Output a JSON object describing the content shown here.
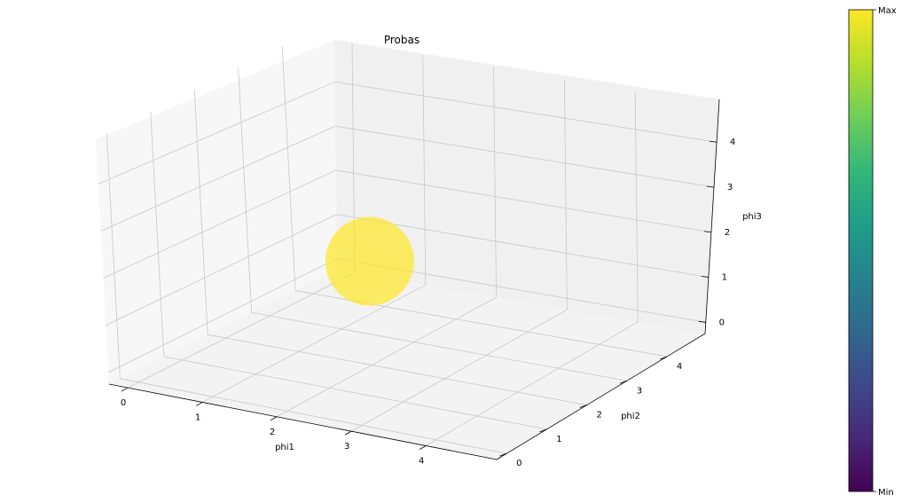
{
  "chart_data": {
    "type": "scatter",
    "projection": "3d",
    "title": "Probas",
    "xlabel": "phi1",
    "ylabel": "phi2",
    "zlabel": "phi3",
    "x_ticks": [
      0,
      1,
      2,
      3,
      4
    ],
    "y_ticks": [
      0,
      1,
      2,
      3,
      4
    ],
    "z_ticks": [
      0,
      1,
      2,
      3,
      4
    ],
    "grid": true,
    "points": [
      {
        "x": 2,
        "y": 2,
        "z": 2,
        "probability": 1.0,
        "color": "#fde725",
        "alpha": 0.7
      }
    ],
    "colorbar": {
      "colormap": "viridis",
      "placement": "right",
      "labels": {
        "max": "Max",
        "min": "Min"
      },
      "stops": [
        "#440154",
        "#482878",
        "#3e4989",
        "#31688e",
        "#26828e",
        "#1f9e89",
        "#35b779",
        "#6ece58",
        "#b5de2b",
        "#fde725"
      ]
    },
    "pane_colors": {
      "left": "#f7f7f7",
      "back": "#f0f0f0",
      "floor": "#f3f3f3",
      "grid": "#c8c8c8"
    }
  }
}
